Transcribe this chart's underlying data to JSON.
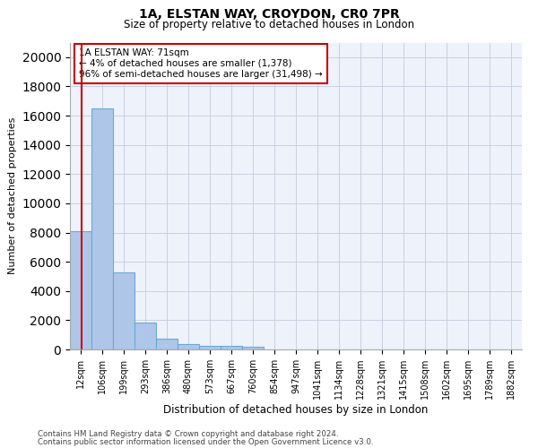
{
  "title_line1": "1A, ELSTAN WAY, CROYDON, CR0 7PR",
  "title_line2": "Size of property relative to detached houses in London",
  "xlabel": "Distribution of detached houses by size in London",
  "ylabel": "Number of detached properties",
  "bar_labels": [
    "12sqm",
    "106sqm",
    "199sqm",
    "293sqm",
    "386sqm",
    "480sqm",
    "573sqm",
    "667sqm",
    "760sqm",
    "854sqm",
    "947sqm",
    "1041sqm",
    "1134sqm",
    "1228sqm",
    "1321sqm",
    "1415sqm",
    "1508sqm",
    "1602sqm",
    "1695sqm",
    "1789sqm",
    "1882sqm"
  ],
  "bar_values": [
    8100,
    16500,
    5300,
    1850,
    750,
    380,
    275,
    220,
    195,
    0,
    0,
    0,
    0,
    0,
    0,
    0,
    0,
    0,
    0,
    0,
    0
  ],
  "bar_color": "#aec6e8",
  "bar_edge_color": "#6aaad4",
  "vline_color": "#cc0000",
  "annotation_text": "1A ELSTAN WAY: 71sqm\n← 4% of detached houses are smaller (1,378)\n96% of semi-detached houses are larger (31,498) →",
  "annotation_box_color": "#ffffff",
  "annotation_box_edge": "#cc0000",
  "ylim": [
    0,
    21000
  ],
  "yticks": [
    0,
    2000,
    4000,
    6000,
    8000,
    10000,
    12000,
    14000,
    16000,
    18000,
    20000
  ],
  "grid_color": "#c8d0e0",
  "bg_color": "#eef2fa",
  "footer_line1": "Contains HM Land Registry data © Crown copyright and database right 2024.",
  "footer_line2": "Contains public sector information licensed under the Open Government Licence v3.0."
}
